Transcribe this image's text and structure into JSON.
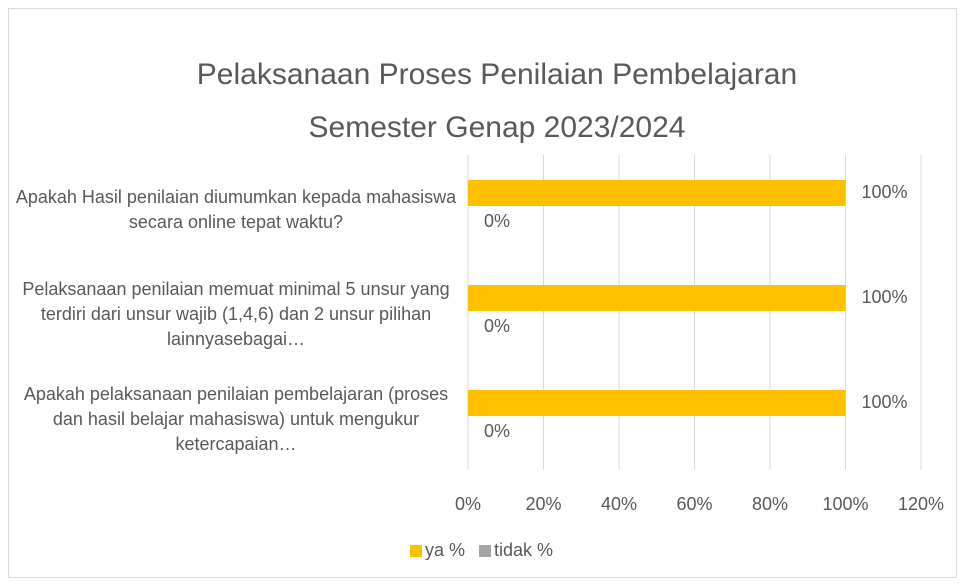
{
  "chart_data": {
    "type": "bar",
    "orientation": "horizontal",
    "title": [
      "Pelaksanaan Proses Penilaian Pembelajaran",
      "Semester Genap 2023/2024"
    ],
    "categories": [
      "Apakah Hasil penilaian diumumkan kepada mahasiswa secara online tepat waktu?",
      "Pelaksanaan penilaian memuat minimal 5 unsur yang terdiri dari unsur wajib (1,4,6) dan 2 unsur pilihan lainnyasebagai…",
      "Apakah pelaksanaan penilaian pembelajaran (proses dan hasil belajar mahasiswa) untuk mengukur ketercapaian…"
    ],
    "series": [
      {
        "name": "ya %",
        "color": "#ffc000",
        "values": [
          100,
          100,
          100
        ],
        "value_labels": [
          "100%",
          "100%",
          "100%"
        ]
      },
      {
        "name": "tidak %",
        "color": "#a5a5a5",
        "values": [
          0,
          0,
          0
        ],
        "value_labels": [
          "0%",
          "0%",
          "0%"
        ]
      }
    ],
    "xlim": [
      0,
      120
    ],
    "xticks": [
      {
        "value": 0,
        "label": "0%"
      },
      {
        "value": 20,
        "label": "20%"
      },
      {
        "value": 40,
        "label": "40%"
      },
      {
        "value": 60,
        "label": "60%"
      },
      {
        "value": 80,
        "label": "80%"
      },
      {
        "value": 100,
        "label": "100%"
      },
      {
        "value": 120,
        "label": "120%"
      }
    ],
    "grid": true,
    "legend": "bottom"
  }
}
